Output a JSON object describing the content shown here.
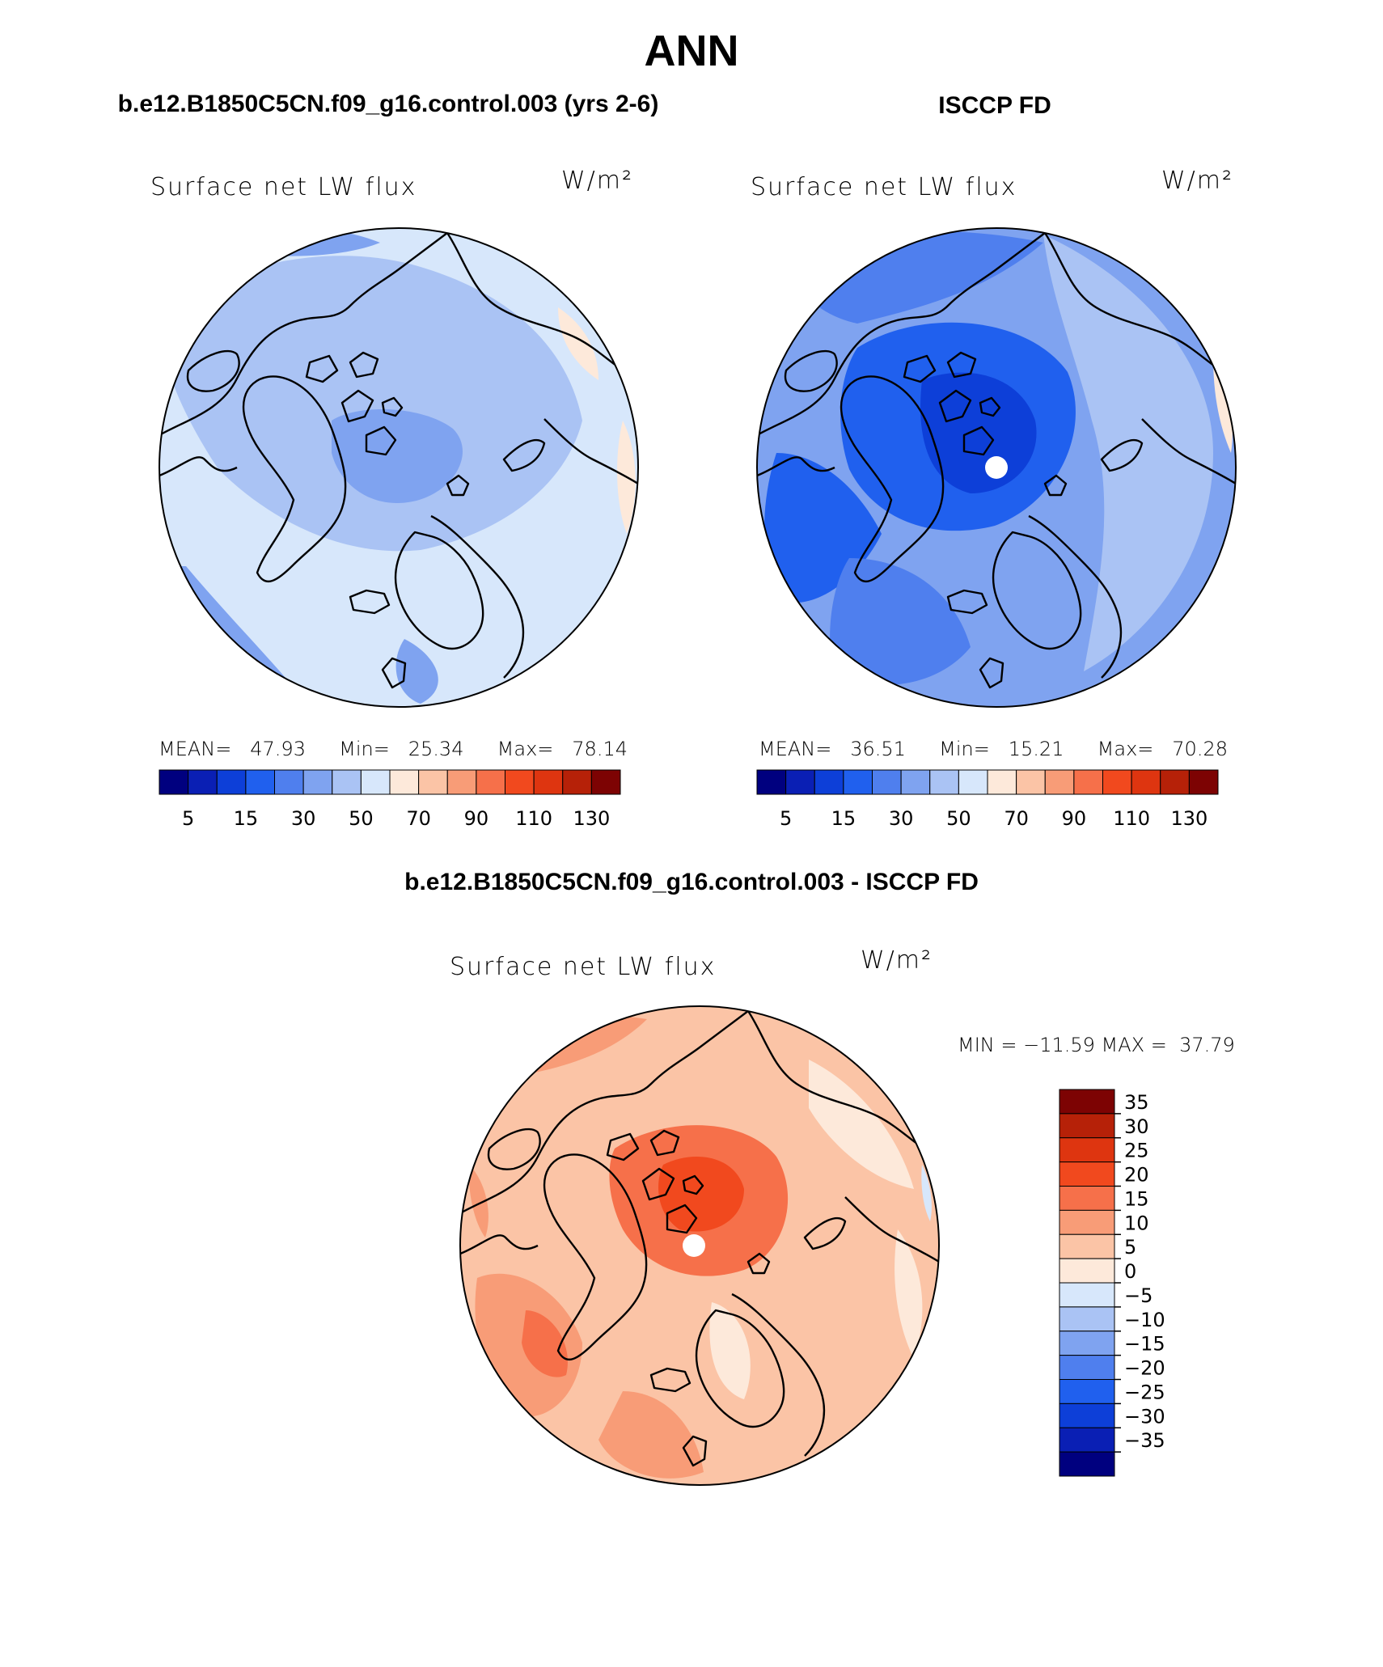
{
  "page": {
    "title": "ANN",
    "model_title": "b.e12.B1850C5CN.f09_g16.control.003 (yrs 2-6)",
    "obs_title": "ISCCP FD",
    "diff_title": "b.e12.B1850C5CN.f09_g16.control.003 - ISCCP FD"
  },
  "colors": {
    "abs_scale": [
      "#00007f",
      "#0a1fb4",
      "#0d3fd8",
      "#2060ee",
      "#4f7fee",
      "#7fa3f0",
      "#aac3f4",
      "#d7e7fb",
      "#fde9da",
      "#fbc4a6",
      "#f89c77",
      "#f6704a",
      "#f1491e",
      "#de3510",
      "#b62108",
      "#7d0303"
    ],
    "diff_scale": [
      "#7d0303",
      "#b62108",
      "#de3510",
      "#f1491e",
      "#f6704a",
      "#f89c77",
      "#fbc4a6",
      "#fde9da",
      "#d7e7fb",
      "#aac3f4",
      "#7fa3f0",
      "#4f7fee",
      "#2060ee",
      "#0d3fd8",
      "#0a1fb4",
      "#00007f"
    ]
  },
  "chart_data": [
    {
      "type": "heatmap",
      "panel": "model",
      "variable": "Surface net LW flux",
      "units": "W/m²",
      "mean_label": "MEAN=",
      "min_label": "Min=",
      "max_label": "Max=",
      "mean": "47.93",
      "min": "25.34",
      "max": "78.14",
      "colorbar_ticks": [
        "5",
        "15",
        "30",
        "50",
        "70",
        "90",
        "110",
        "130"
      ]
    },
    {
      "type": "heatmap",
      "panel": "observations",
      "variable": "Surface net LW flux",
      "units": "W/m²",
      "mean_label": "MEAN=",
      "min_label": "Min=",
      "max_label": "Max=",
      "mean": "36.51",
      "min": "15.21",
      "max": "70.28",
      "colorbar_ticks": [
        "5",
        "15",
        "30",
        "50",
        "70",
        "90",
        "110",
        "130"
      ]
    },
    {
      "type": "heatmap",
      "panel": "difference",
      "variable": "Surface net LW flux",
      "units": "W/m²",
      "minmax_text": "MIN = −11.59 MAX =  37.79",
      "colorbar_ticks": [
        "35",
        "30",
        "25",
        "20",
        "15",
        "10",
        "5",
        "0",
        "−5",
        "−10",
        "−15",
        "−20",
        "−25",
        "−30",
        "−35"
      ]
    }
  ]
}
